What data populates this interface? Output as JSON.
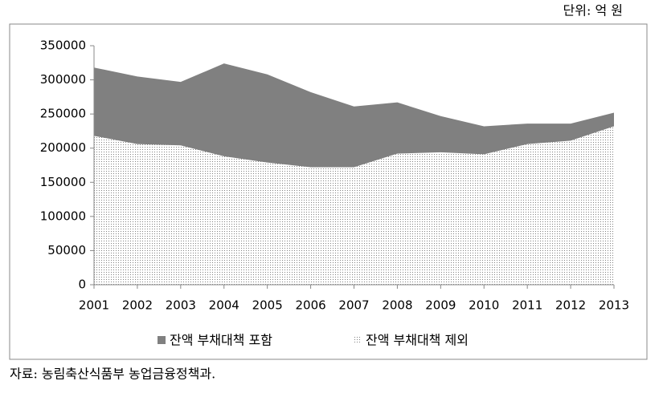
{
  "chart_data": {
    "type": "area",
    "unit_note": "단위: 억 원",
    "source": "자료: 농림축산식품부 농업금융정책과.",
    "categories": [
      "2001",
      "2002",
      "2003",
      "2004",
      "2005",
      "2006",
      "2007",
      "2008",
      "2009",
      "2010",
      "2011",
      "2012",
      "2013"
    ],
    "series": [
      {
        "name": "잔액 부채대책 포함",
        "color": "#808080",
        "pattern": "solid",
        "values": [
          318000,
          305000,
          297000,
          324000,
          308000,
          282000,
          261000,
          267000,
          247000,
          232000,
          236000,
          236000,
          252000
        ]
      },
      {
        "name": "잔액 부채대책 제외",
        "color": "#808080",
        "pattern": "dotted",
        "values": [
          218000,
          206000,
          204000,
          188000,
          179000,
          172000,
          172000,
          192000,
          194000,
          191000,
          206000,
          211000,
          232000
        ]
      }
    ],
    "ylim": [
      0,
      350000
    ],
    "yticks": [
      0,
      50000,
      100000,
      150000,
      200000,
      250000,
      300000,
      350000
    ],
    "legend": "bottom"
  }
}
